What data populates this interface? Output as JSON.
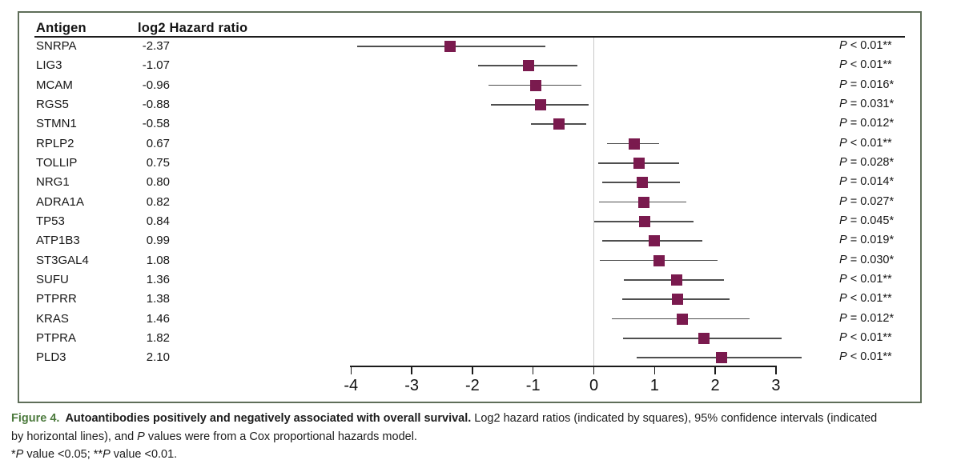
{
  "figure": {
    "columns": {
      "antigen": "Antigen",
      "hr": "log2 Hazard ratio"
    }
  },
  "chart_data": {
    "type": "forest",
    "title": "Autoantibodies positively and negatively associated with overall survival",
    "xlabel": "log2 Hazard ratio",
    "x_ticks": [
      -4,
      -3,
      -2,
      -1,
      0,
      1,
      2,
      3
    ],
    "xlim": [
      -4,
      3.6
    ],
    "zero_reference_line": 0,
    "marker_color": "#7a1a4e",
    "ci_color": "#4f4f4f",
    "zero_line_color": "#c9c9c9",
    "rows": [
      {
        "antigen": "SNRPA",
        "log2hr_label": "-2.37",
        "log2hr": -2.37,
        "ci_low": -3.9,
        "ci_high": -0.8,
        "p": "P < 0.01**"
      },
      {
        "antigen": "LIG3",
        "log2hr_label": "-1.07",
        "log2hr": -1.07,
        "ci_low": -1.9,
        "ci_high": -0.27,
        "p": "P < 0.01**"
      },
      {
        "antigen": "MCAM",
        "log2hr_label": "-0.96",
        "log2hr": -0.96,
        "ci_low": -1.74,
        "ci_high": -0.2,
        "p": "P = 0.016*"
      },
      {
        "antigen": "RGS5",
        "log2hr_label": "-0.88",
        "log2hr": -0.88,
        "ci_low": -1.7,
        "ci_high": -0.09,
        "p": "P = 0.031*"
      },
      {
        "antigen": "STMN1",
        "log2hr_label": "-0.58",
        "log2hr": -0.58,
        "ci_low": -1.04,
        "ci_high": -0.13,
        "p": "P = 0.012*"
      },
      {
        "antigen": "RPLP2",
        "log2hr_label": "0.67",
        "log2hr": 0.67,
        "ci_low": 0.22,
        "ci_high": 1.08,
        "p": "P < 0.01**"
      },
      {
        "antigen": "TOLLIP",
        "log2hr_label": "0.75",
        "log2hr": 0.75,
        "ci_low": 0.07,
        "ci_high": 1.41,
        "p": "P = 0.028*"
      },
      {
        "antigen": "NRG1",
        "log2hr_label": "0.80",
        "log2hr": 0.8,
        "ci_low": 0.14,
        "ci_high": 1.42,
        "p": "P = 0.014*"
      },
      {
        "antigen": "ADRA1A",
        "log2hr_label": "0.82",
        "log2hr": 0.82,
        "ci_low": 0.08,
        "ci_high": 1.52,
        "p": "P = 0.027*"
      },
      {
        "antigen": "TP53",
        "log2hr_label": "0.84",
        "log2hr": 0.84,
        "ci_low": 0.01,
        "ci_high": 1.64,
        "p": "P = 0.045*"
      },
      {
        "antigen": "ATP1B3",
        "log2hr_label": "0.99",
        "log2hr": 0.99,
        "ci_low": 0.14,
        "ci_high": 1.79,
        "p": "P = 0.019*"
      },
      {
        "antigen": "ST3GAL4",
        "log2hr_label": "1.08",
        "log2hr": 1.08,
        "ci_low": 0.1,
        "ci_high": 2.04,
        "p": "P = 0.030*"
      },
      {
        "antigen": "SUFU",
        "log2hr_label": "1.36",
        "log2hr": 1.36,
        "ci_low": 0.49,
        "ci_high": 2.15,
        "p": "P < 0.01**"
      },
      {
        "antigen": "PTPRR",
        "log2hr_label": "1.38",
        "log2hr": 1.38,
        "ci_low": 0.47,
        "ci_high": 2.23,
        "p": "P < 0.01**"
      },
      {
        "antigen": "KRAS",
        "log2hr_label": "1.46",
        "log2hr": 1.46,
        "ci_low": 0.3,
        "ci_high": 2.56,
        "p": "P = 0.012*"
      },
      {
        "antigen": "PTPRA",
        "log2hr_label": "1.82",
        "log2hr": 1.82,
        "ci_low": 0.48,
        "ci_high": 3.1,
        "p": "P < 0.01**"
      },
      {
        "antigen": "PLD3",
        "log2hr_label": "2.10",
        "log2hr": 2.1,
        "ci_low": 0.71,
        "ci_high": 3.42,
        "p": "P < 0.01**"
      }
    ]
  },
  "caption": {
    "label": "Figure 4.",
    "label_color": "#4c7a3d",
    "line1_bold": "Autoantibodies positively and negatively associated with overall survival.",
    "line1_rest": "Log2 hazard ratios (indicated by squares), 95% confidence intervals (indicated",
    "line2": [
      "by horizontal lines), and ",
      "P",
      " values were from a Cox proportional hazards model."
    ],
    "line3": [
      "*",
      "P",
      " value <0.05; **",
      "P",
      " value <0.01."
    ]
  }
}
